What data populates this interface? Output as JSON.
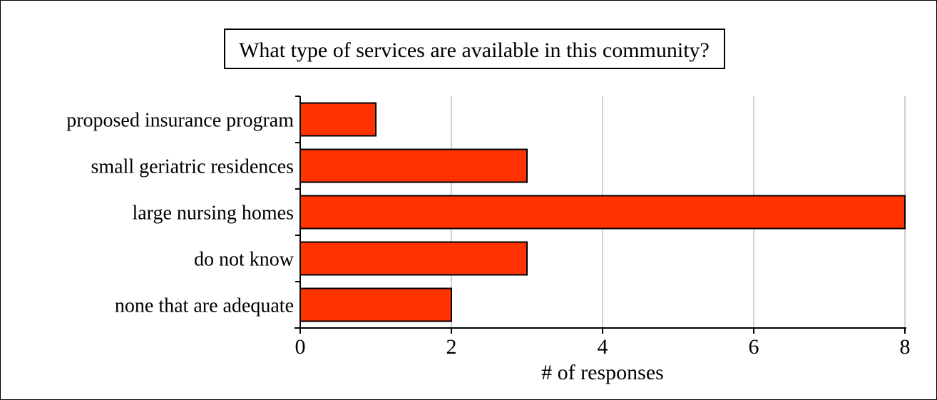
{
  "chart_data": {
    "type": "bar",
    "orientation": "horizontal",
    "title": "What type of services are available in this community?",
    "xlabel": "# of responses",
    "ylabel": "",
    "categories": [
      "proposed insurance program",
      "small geriatric residences",
      "large nursing homes",
      "do not know",
      "none that are adequate"
    ],
    "values": [
      1,
      3,
      8,
      3,
      2
    ],
    "xlim": [
      0,
      8
    ],
    "xticks": [
      "0",
      "2",
      "4",
      "6",
      "8"
    ],
    "grid": true,
    "bar_color": "#ff3300"
  }
}
